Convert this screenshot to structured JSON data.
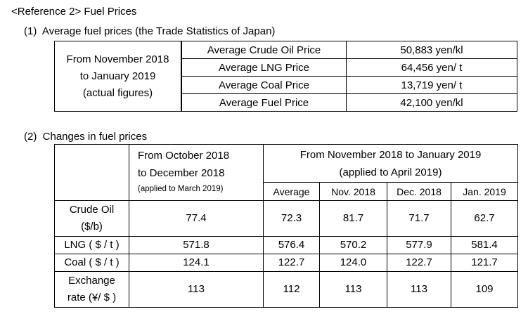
{
  "heading": "<Reference 2> Fuel Prices",
  "section1": {
    "title": "(1)  Average fuel prices (the Trade Statistics of Japan)",
    "period": [
      "From November 2018",
      "to January 2019",
      "(actual figures)"
    ],
    "rows": [
      {
        "label": "Average Crude Oil Price",
        "value": "50,883 yen/kl"
      },
      {
        "label": "Average LNG Price",
        "value": "64,456 yen/ t"
      },
      {
        "label": "Average Coal Price",
        "value": "13,719 yen/ t"
      },
      {
        "label": "Average Fuel Price",
        "value": "42,100 yen/kl"
      }
    ]
  },
  "section2": {
    "title": "(2)  Changes in fuel prices",
    "col1_header": [
      "From October 2018",
      "to December 2018",
      "(applied to March 2019)"
    ],
    "col2_header": [
      "From November 2018 to January 2019",
      "(applied to April 2019)"
    ],
    "sub_headers": [
      "Average",
      "Nov. 2018",
      "Dec. 2018",
      "Jan. 2019"
    ],
    "rows": [
      {
        "label": [
          "Crude Oil",
          "($/b)"
        ],
        "values": [
          "77.4",
          "72.3",
          "81.7",
          "71.7",
          "62.7"
        ]
      },
      {
        "label": [
          "LNG ( $ / t )"
        ],
        "values": [
          "571.8",
          "576.4",
          "570.2",
          "577.9",
          "581.4"
        ]
      },
      {
        "label": [
          "Coal ( $ / t )"
        ],
        "values": [
          "124.1",
          "122.7",
          "124.0",
          "122.7",
          "121.7"
        ]
      },
      {
        "label": [
          "Exchange",
          "rate (¥/ $ )"
        ],
        "values": [
          "113",
          "112",
          "113",
          "113",
          "109"
        ]
      }
    ]
  }
}
